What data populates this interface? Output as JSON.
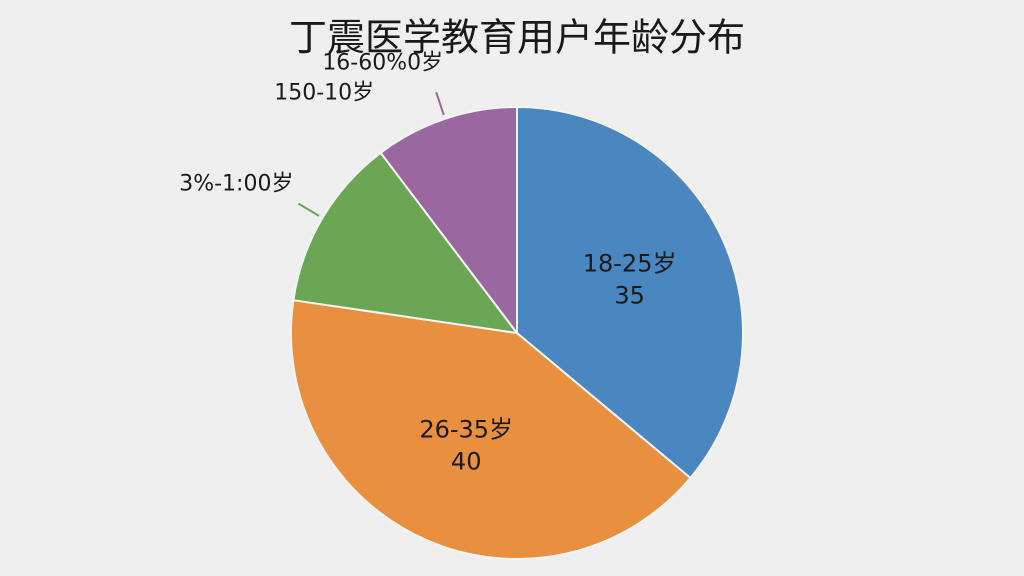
{
  "chart_data": {
    "type": "pie",
    "title": "丁震医学教育用户年龄分布",
    "categories": [
      "18-25岁",
      "26-35岁",
      "3%-1:00岁",
      "16-60%0岁"
    ],
    "values": [
      35,
      40,
      12,
      10
    ],
    "colors": [
      "#4a86c0",
      "#e8903f",
      "#6aa653",
      "#9b67a0"
    ],
    "label_inside": [
      true,
      true,
      false,
      false
    ],
    "annotations": [
      "150-10岁"
    ]
  }
}
